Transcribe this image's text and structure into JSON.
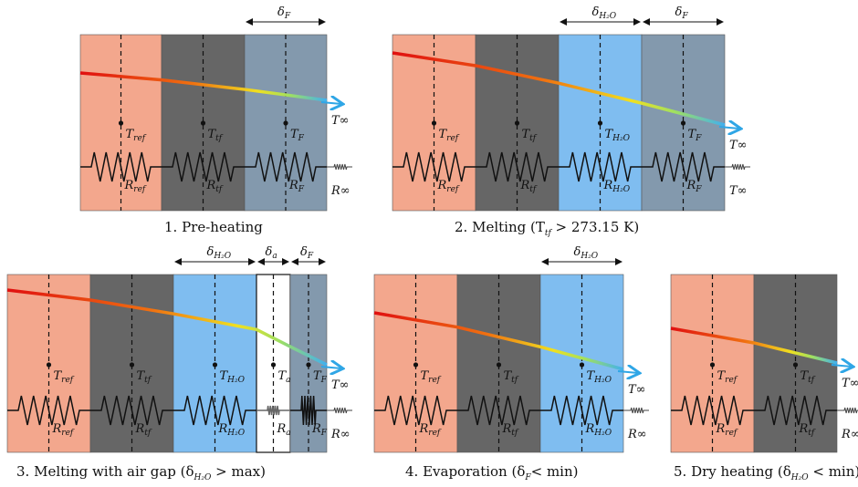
{
  "colors": {
    "ref": "#f3a78d",
    "tf": "#666666",
    "h2o": "#7fbdf0",
    "air": "#ffffff",
    "frost": "#8399ad",
    "arrow": "#2fa6e6"
  },
  "panels": [
    {
      "caption": "1. Pre-heating",
      "layers": [
        {
          "type": "ref",
          "T": "T",
          "T_sub": "ref",
          "R": "R",
          "R_sub": "ref"
        },
        {
          "type": "tf",
          "T": "T",
          "T_sub": "tf",
          "R": "R",
          "R_sub": "tf"
        },
        {
          "type": "frost",
          "T": "T",
          "T_sub": "F",
          "R": "R",
          "R_sub": "F"
        }
      ],
      "thickness": [
        {
          "symbol": "δ",
          "sub": "F",
          "layer": 2
        }
      ],
      "T_inf": "T∞",
      "R_inf": "R∞"
    },
    {
      "caption": "2. Melting (T",
      "caption_sub": "tf",
      "caption_tail": " > 273.15 K)",
      "layers": [
        {
          "type": "ref",
          "T": "T",
          "T_sub": "ref",
          "R": "R",
          "R_sub": "ref"
        },
        {
          "type": "tf",
          "T": "T",
          "T_sub": "tf",
          "R": "R",
          "R_sub": "tf"
        },
        {
          "type": "h2o",
          "T": "T",
          "T_sub": "H₂O",
          "R": "R",
          "R_sub": "H₂O"
        },
        {
          "type": "frost",
          "T": "T",
          "T_sub": "F",
          "R": "R",
          "R_sub": "F"
        }
      ],
      "thickness": [
        {
          "symbol": "δ",
          "sub": "H₂O",
          "layer": 2
        },
        {
          "symbol": "δ",
          "sub": "F",
          "layer": 3
        }
      ],
      "T_inf": "T∞",
      "R_inf": "T∞"
    },
    {
      "caption": "3. Melting with air gap (δ",
      "caption_sub": "H₂O",
      "caption_tail": " > max)",
      "layers": [
        {
          "type": "ref",
          "T": "T",
          "T_sub": "ref",
          "R": "R",
          "R_sub": "ref"
        },
        {
          "type": "tf",
          "T": "T",
          "T_sub": "tf",
          "R": "R",
          "R_sub": "tf"
        },
        {
          "type": "h2o",
          "T": "T",
          "T_sub": "H₂O",
          "R": "R",
          "R_sub": "H₂O"
        },
        {
          "type": "air",
          "T": "T",
          "T_sub": "a",
          "R": "R",
          "R_sub": "a"
        },
        {
          "type": "frost",
          "T": "T",
          "T_sub": "F",
          "R": "R",
          "R_sub": "F"
        }
      ],
      "thickness": [
        {
          "symbol": "δ",
          "sub": "H₂O",
          "layer": 2
        },
        {
          "symbol": "δ",
          "sub": "a",
          "layer": 3
        },
        {
          "symbol": "δ",
          "sub": "F",
          "layer": 4
        }
      ],
      "T_inf": "T∞",
      "R_inf": "R∞"
    },
    {
      "caption": "4. Evaporation (δ",
      "caption_sub": "F",
      "caption_tail": "< min)",
      "layers": [
        {
          "type": "ref",
          "T": "T",
          "T_sub": "ref",
          "R": "R",
          "R_sub": "ref"
        },
        {
          "type": "tf",
          "T": "T",
          "T_sub": "tf",
          "R": "R",
          "R_sub": "tf"
        },
        {
          "type": "h2o",
          "T": "T",
          "T_sub": "H₂O",
          "R": "R",
          "R_sub": "H₂O"
        }
      ],
      "thickness": [
        {
          "symbol": "δ",
          "sub": "H₂O",
          "layer": 2
        }
      ],
      "T_inf": "T∞",
      "R_inf": "R∞"
    },
    {
      "caption": "5. Dry heating (δ",
      "caption_sub": "H₂O",
      "caption_tail": " < min)",
      "layers": [
        {
          "type": "ref",
          "T": "T",
          "T_sub": "ref",
          "R": "R",
          "R_sub": "ref"
        },
        {
          "type": "tf",
          "T": "T",
          "T_sub": "tf",
          "R": "R",
          "R_sub": "tf"
        }
      ],
      "thickness": [],
      "T_inf": "T∞",
      "R_inf": "R∞"
    }
  ]
}
